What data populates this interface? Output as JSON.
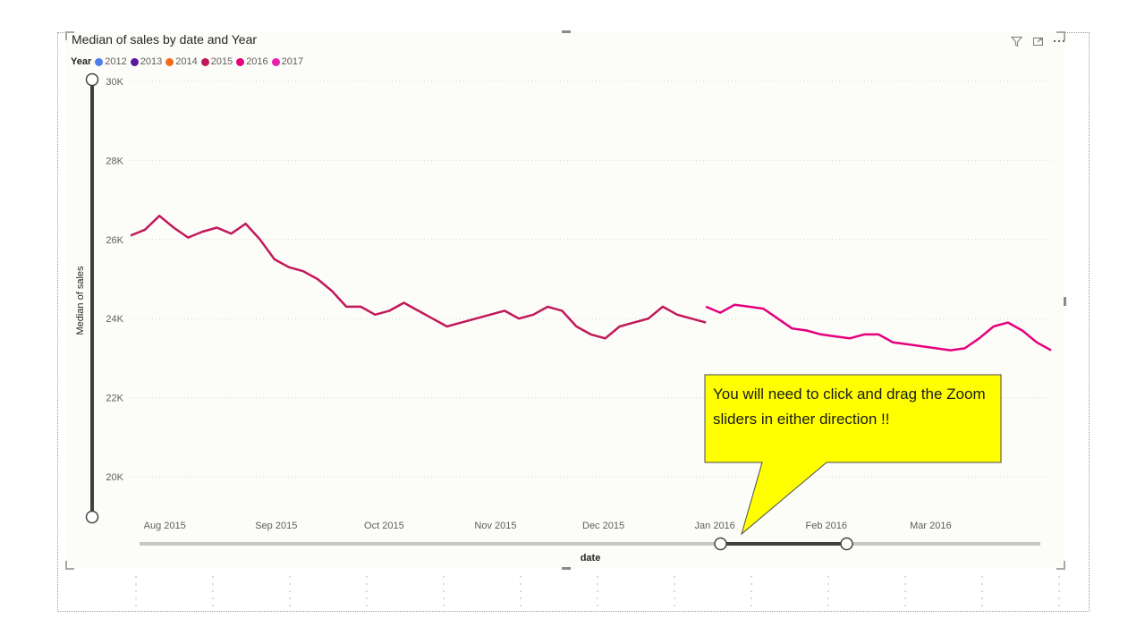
{
  "visual": {
    "title": "Median of sales by date and Year",
    "icons": [
      "filter-icon",
      "focus-mode-icon",
      "more-options-icon"
    ]
  },
  "legend": {
    "title": "Year",
    "items": [
      {
        "label": "2012",
        "color": "#4b7bec"
      },
      {
        "label": "2013",
        "color": "#5b1a9c"
      },
      {
        "label": "2014",
        "color": "#f26b1d"
      },
      {
        "label": "2015",
        "color": "#c2185b"
      },
      {
        "label": "2016",
        "color": "#e6007e"
      },
      {
        "label": "2017",
        "color": "#e91eb0"
      }
    ]
  },
  "axes": {
    "x_title": "date",
    "y_title": "Median of sales"
  },
  "callout": {
    "text": "You will need to click and drag the Zoom sliders in either direction !!",
    "background": "#ffff00"
  },
  "zoom": {
    "x_slider_start_fraction": 0.645,
    "x_slider_end_fraction": 0.785
  },
  "chart_data": {
    "type": "line",
    "title": "Median of sales by date and Year",
    "xlabel": "date",
    "ylabel": "Median of sales",
    "ylim": [
      19000,
      30000
    ],
    "y_ticks": [
      20000,
      22000,
      24000,
      26000,
      28000,
      30000
    ],
    "y_tick_labels": [
      "20K",
      "22K",
      "24K",
      "26K",
      "28K",
      "30K"
    ],
    "x_tick_labels": [
      "Aug 2015",
      "Sep 2015",
      "Oct 2015",
      "Nov 2015",
      "Dec 2015",
      "Jan 2016",
      "Feb 2016",
      "Mar 2016"
    ],
    "grid": true,
    "legend_position": "top-left",
    "series": [
      {
        "name": "2015",
        "color": "#c2185b",
        "x": [
          "2015-07-23",
          "2015-07-27",
          "2015-07-31",
          "2015-08-04",
          "2015-08-08",
          "2015-08-12",
          "2015-08-16",
          "2015-08-20",
          "2015-08-24",
          "2015-08-28",
          "2015-09-01",
          "2015-09-05",
          "2015-09-09",
          "2015-09-13",
          "2015-09-17",
          "2015-09-21",
          "2015-09-25",
          "2015-09-29",
          "2015-10-03",
          "2015-10-07",
          "2015-10-11",
          "2015-10-15",
          "2015-10-19",
          "2015-10-23",
          "2015-10-27",
          "2015-10-31",
          "2015-11-04",
          "2015-11-08",
          "2015-11-12",
          "2015-11-16",
          "2015-11-20",
          "2015-11-24",
          "2015-11-28",
          "2015-12-02",
          "2015-12-06",
          "2015-12-10",
          "2015-12-14",
          "2015-12-18",
          "2015-12-22",
          "2015-12-26",
          "2015-12-30"
        ],
        "y": [
          26100,
          26250,
          26600,
          26300,
          26050,
          26200,
          26300,
          26150,
          26400,
          26000,
          25500,
          25300,
          25200,
          25000,
          24700,
          24300,
          24300,
          24100,
          24200,
          24400,
          24200,
          24000,
          23800,
          23900,
          24000,
          24100,
          24200,
          24000,
          24100,
          24300,
          24200,
          23800,
          23600,
          23500,
          23800,
          23900,
          24000,
          24300,
          24100,
          24000,
          23900
        ]
      },
      {
        "name": "2016",
        "color": "#e6007e",
        "x": [
          "2015-12-30",
          "2016-01-03",
          "2016-01-07",
          "2016-01-11",
          "2016-01-15",
          "2016-01-19",
          "2016-01-23",
          "2016-01-27",
          "2016-01-31",
          "2016-02-04",
          "2016-02-08",
          "2016-02-12",
          "2016-02-16",
          "2016-02-20",
          "2016-02-24",
          "2016-02-28",
          "2016-03-03",
          "2016-03-07",
          "2016-03-11",
          "2016-03-15",
          "2016-03-19",
          "2016-03-23",
          "2016-03-27",
          "2016-03-31",
          "2016-04-04"
        ],
        "y": [
          24300,
          24150,
          24350,
          24300,
          24250,
          24000,
          23750,
          23700,
          23600,
          23550,
          23500,
          23600,
          23600,
          23400,
          23350,
          23300,
          23250,
          23200,
          23250,
          23500,
          23800,
          23900,
          23700,
          23400,
          23200
        ]
      }
    ]
  }
}
